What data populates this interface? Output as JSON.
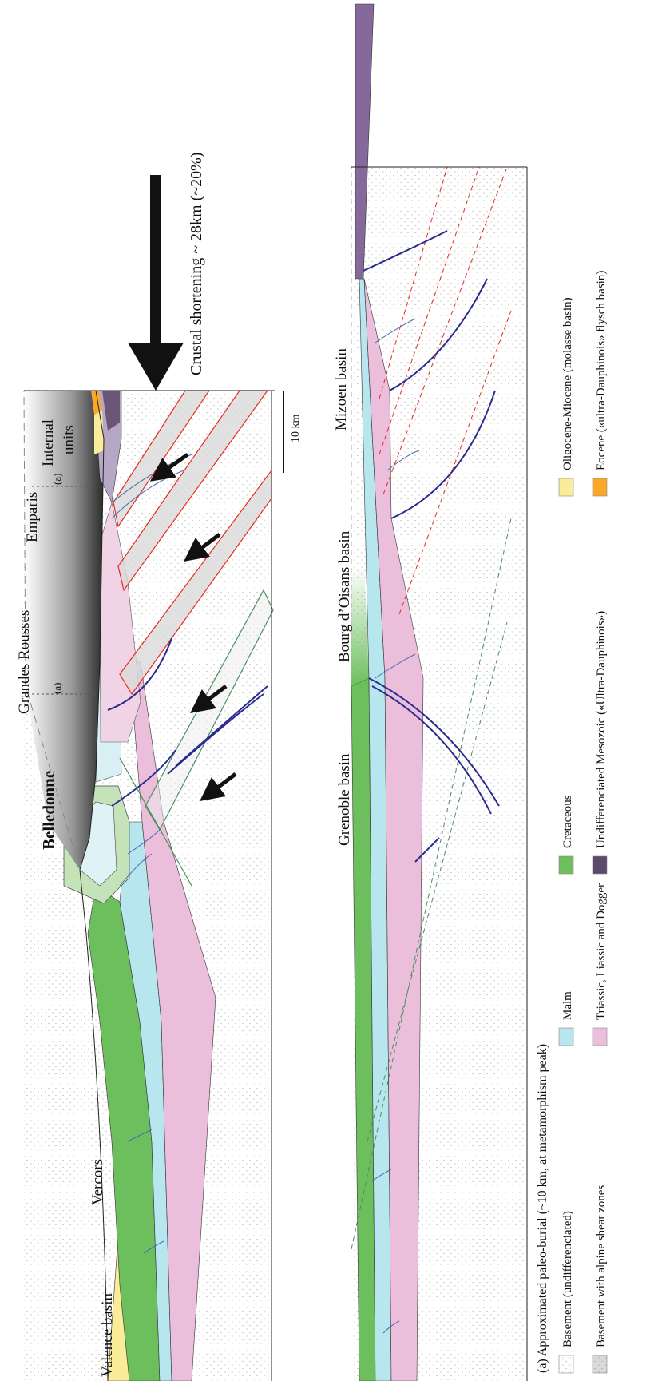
{
  "upper_section": {
    "labels": {
      "valence": "Valence basin",
      "vercors": "Vercors",
      "belledonne": "Belledonne",
      "grandes_rousses": "Grandes Rousses",
      "emparis": "Emparis",
      "internal_1": "Internal",
      "internal_2": "units"
    },
    "markers": [
      "(a)",
      "(a)"
    ],
    "shortening": "Crustal shortening  ~ 28km (~20%)",
    "scale_bar": "10 km"
  },
  "lower_section": {
    "labels": [
      "Grenoble basin",
      "Bourg d’Oisans basin",
      "Mizoen basin"
    ]
  },
  "legend": {
    "note": "(a) Approximated paleo-burial (~10 km, at metamorphism peak)",
    "items": [
      {
        "label": "Basement (undifferenciated)",
        "color": "#ffffff"
      },
      {
        "label": "Basement with alpine shear zones",
        "color": "#d9d9d9"
      },
      {
        "label": "Malm",
        "color": "#b8e6ef"
      },
      {
        "label": "Triassic, Liassic and Dogger",
        "color": "#ebbfdc"
      },
      {
        "label": "Cretaceous",
        "color": "#6dbf5d"
      },
      {
        "label": "Undifferenciated Mesozoic («Ultra-Dauphinois»)",
        "color": "#5e4a6b"
      },
      {
        "label": "Oligocene-Miocene (molasse basin)",
        "color": "#fbec9a"
      },
      {
        "label": "Eocene («ultra-Dauphinois» flysch basin)",
        "color": "#f9a82a"
      }
    ]
  }
}
